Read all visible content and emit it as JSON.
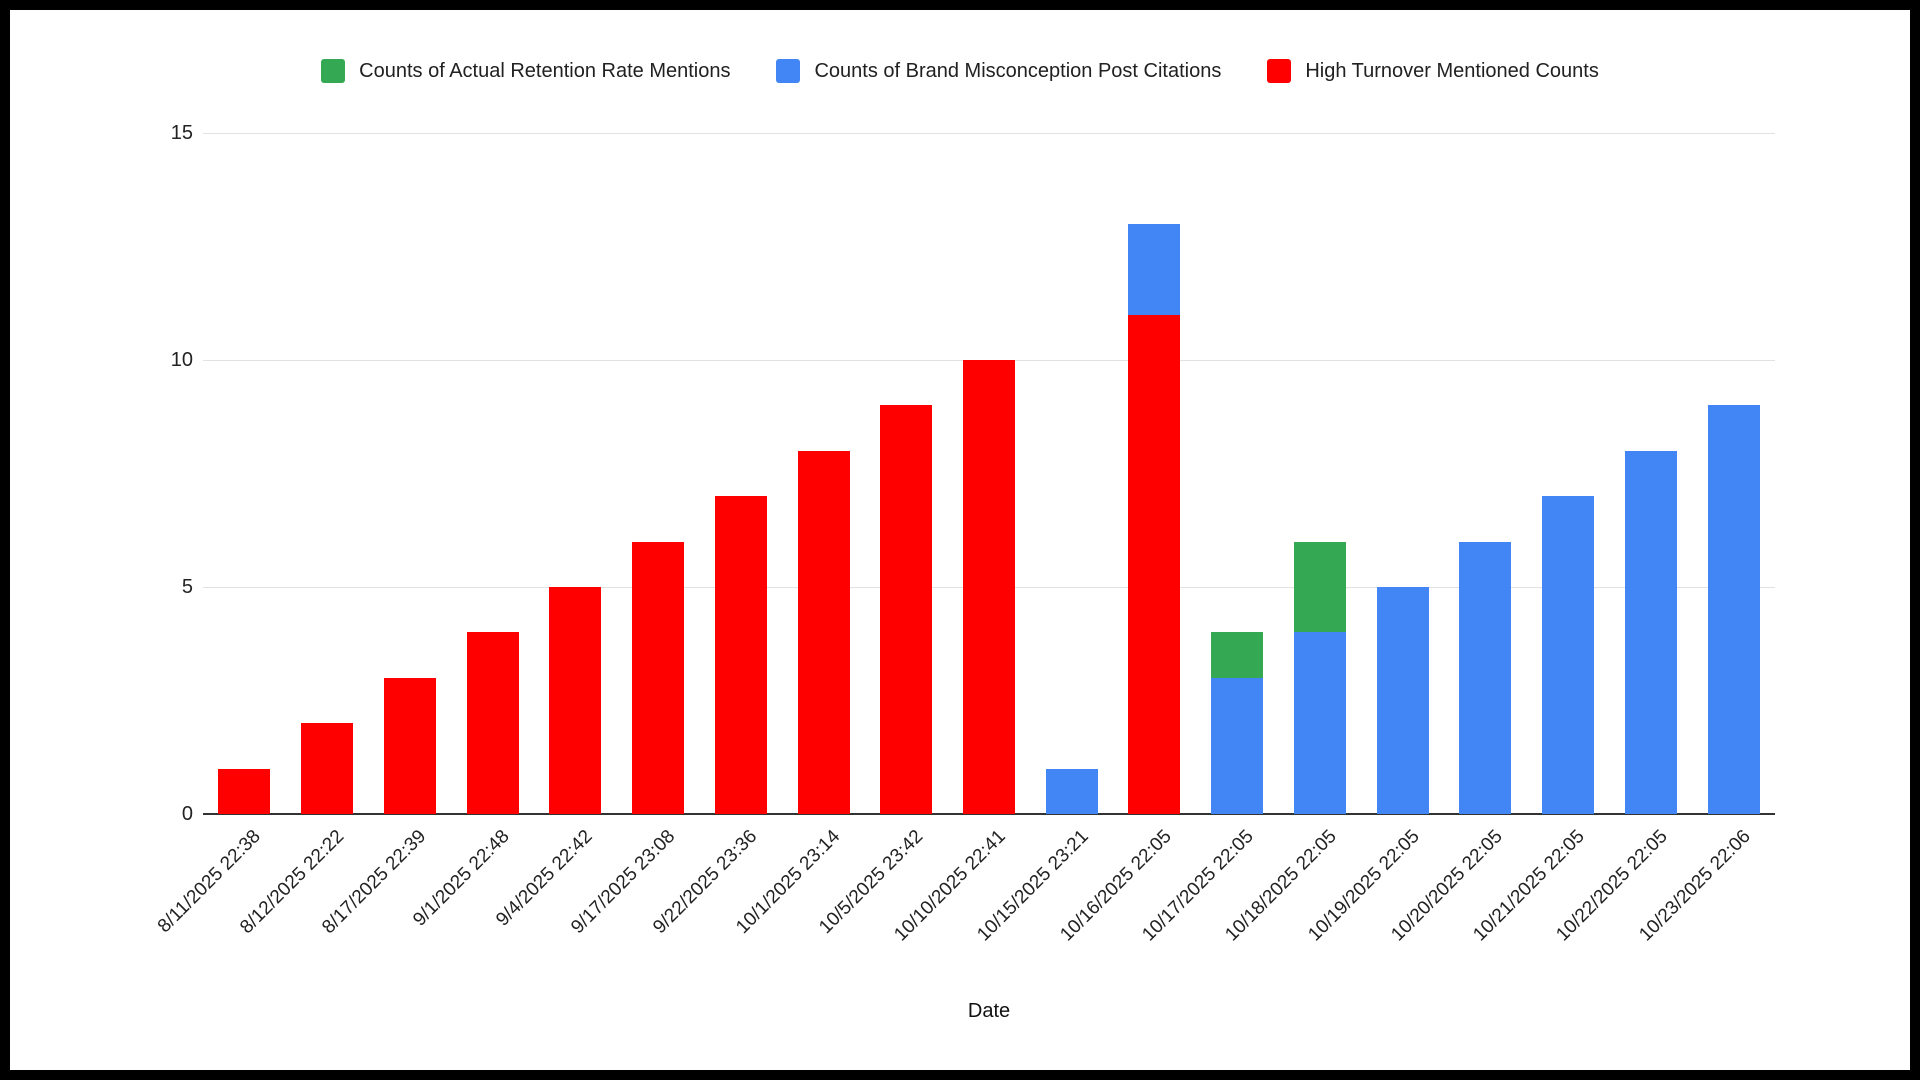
{
  "chart_data": {
    "type": "bar",
    "stacked": true,
    "title": "",
    "xlabel": "Date",
    "ylabel": "",
    "ylim": [
      0,
      15
    ],
    "yticks": [
      0,
      5,
      10,
      15
    ],
    "grid": true,
    "legend_position": "top",
    "categories": [
      "8/11/2025 22:38",
      "8/12/2025 22:22",
      "8/17/2025 22:39",
      "9/1/2025 22:48",
      "9/4/2025 22:42",
      "9/17/2025 23:08",
      "9/22/2025 23:36",
      "10/1/2025 23:14",
      "10/5/2025 23:42",
      "10/10/2025 22:41",
      "10/15/2025 23:21",
      "10/16/2025 22:05",
      "10/17/2025 22:05",
      "10/18/2025 22:05",
      "10/19/2025 22:05",
      "10/20/2025 22:05",
      "10/21/2025 22:05",
      "10/22/2025 22:05",
      "10/23/2025 22:06"
    ],
    "series": [
      {
        "name": "Counts of Actual Retention Rate Mentions",
        "color": "#34A853",
        "values": [
          0,
          0,
          0,
          0,
          0,
          0,
          0,
          0,
          0,
          0,
          0,
          0,
          1,
          2,
          0,
          0,
          0,
          0,
          0
        ]
      },
      {
        "name": "Counts of Brand Misconception Post Citations",
        "color": "#4285F4",
        "values": [
          0,
          0,
          0,
          0,
          0,
          0,
          0,
          0,
          0,
          0,
          1,
          2,
          3,
          4,
          5,
          6,
          7,
          8,
          9
        ]
      },
      {
        "name": "High Turnover Mentioned Counts",
        "color": "#FF0000",
        "values": [
          1,
          2,
          3,
          4,
          5,
          6,
          7,
          8,
          9,
          10,
          0,
          11,
          0,
          0,
          0,
          0,
          0,
          0,
          0
        ]
      }
    ],
    "stack_order_bottom_to_top": [
      "High Turnover Mentioned Counts",
      "Counts of Brand Misconception Post Citations",
      "Counts of Actual Retention Rate Mentions"
    ],
    "colors": {
      "background": "#ffffff",
      "frame": "#000000",
      "gridline": "#e2e2e2",
      "axis_line": "#333333",
      "tick_text": "#222222",
      "legend_text": "#212121"
    }
  }
}
